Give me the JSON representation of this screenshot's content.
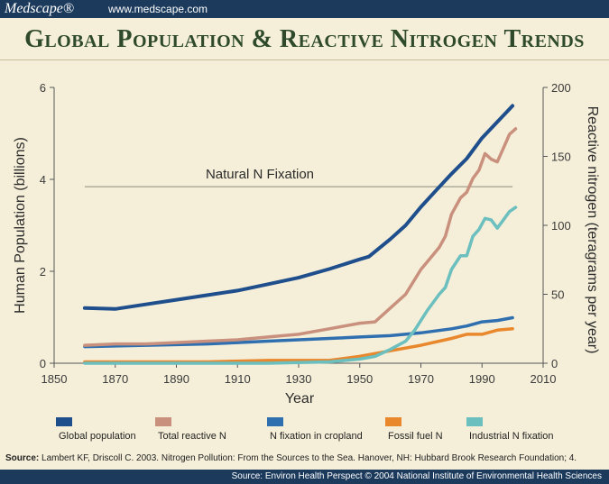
{
  "header": {
    "brand": "Medscape®",
    "site": "www.medscape.com"
  },
  "source_label": "Source:",
  "source_text": "Lambert KF, Driscoll C. 2003. Nitrogen Pollution: From the Sources to the Sea. Hanover, NH: Hubbard Brook Research Foundation; 4.",
  "footer_text": "Source: Environ Health Perspect © 2004 National Institute of Environmental Health Sciences",
  "chart_data": {
    "type": "line",
    "title": "Global Population & Reactive Nitrogen Trends",
    "xlabel": "Year",
    "ylabel_left": "Human Population (billions)",
    "ylabel_right": "Reactive nitrogen (teragrams per year)",
    "xlim": [
      1850,
      2010
    ],
    "ylim_left": [
      0,
      6
    ],
    "ylim_right": [
      0,
      200
    ],
    "x_ticks": [
      1850,
      1870,
      1890,
      1910,
      1930,
      1950,
      1970,
      1990,
      2010
    ],
    "y_left_ticks": [
      0,
      2,
      4,
      6
    ],
    "y_right_ticks": [
      0,
      50,
      100,
      150,
      200
    ],
    "grid": false,
    "reference_line": {
      "label": "Natural N Fixation",
      "value": 128,
      "axis": "right",
      "x_start": 1860,
      "x_end": 2000
    },
    "colors": {
      "Global population": "#1f4e8c",
      "Total reactive N": "#c9917d",
      "N fixation in cropland": "#2f6fb0",
      "Fossil fuel N": "#e8872b",
      "Industrial N fixation": "#6bbfbf"
    },
    "series": [
      {
        "name": "Global population",
        "axis": "left",
        "x": [
          1860,
          1870,
          1880,
          1890,
          1900,
          1910,
          1920,
          1930,
          1940,
          1950,
          1953,
          1960,
          1965,
          1970,
          1975,
          1980,
          1985,
          1990,
          1995,
          2000
        ],
        "y": [
          1.2,
          1.18,
          1.28,
          1.38,
          1.48,
          1.58,
          1.72,
          1.86,
          2.05,
          2.26,
          2.32,
          2.7,
          3.0,
          3.4,
          3.76,
          4.12,
          4.45,
          4.9,
          5.25,
          5.6
        ]
      },
      {
        "name": "Total reactive N",
        "axis": "right",
        "x": [
          1860,
          1870,
          1880,
          1890,
          1900,
          1910,
          1920,
          1930,
          1940,
          1950,
          1955,
          1960,
          1965,
          1970,
          1973,
          1976,
          1978,
          1980,
          1983,
          1985,
          1987,
          1989,
          1991,
          1993,
          1995,
          1997,
          1999,
          2001
        ],
        "y": [
          13,
          14,
          14,
          15,
          16,
          17,
          19,
          21,
          25,
          29,
          30,
          40,
          50,
          68,
          76,
          84,
          92,
          108,
          120,
          124,
          134,
          140,
          152,
          148,
          146,
          156,
          166,
          170
        ]
      },
      {
        "name": "N fixation in cropland",
        "axis": "right",
        "x": [
          1860,
          1880,
          1900,
          1910,
          1920,
          1930,
          1940,
          1950,
          1960,
          1970,
          1980,
          1985,
          1990,
          1995,
          2000
        ],
        "y": [
          12,
          13,
          14,
          15,
          16,
          17,
          18,
          19,
          20,
          22,
          25,
          27,
          30,
          31,
          33
        ]
      },
      {
        "name": "Fossil fuel N",
        "axis": "right",
        "x": [
          1860,
          1880,
          1900,
          1920,
          1940,
          1950,
          1960,
          1970,
          1980,
          1985,
          1990,
          1995,
          2000
        ],
        "y": [
          1,
          1,
          1,
          2,
          2,
          5,
          9,
          13,
          18,
          21,
          21,
          24,
          25
        ]
      },
      {
        "name": "Industrial N fixation",
        "axis": "right",
        "x": [
          1860,
          1900,
          1920,
          1940,
          1950,
          1955,
          1960,
          1965,
          1968,
          1972,
          1976,
          1978,
          1980,
          1983,
          1985,
          1987,
          1989,
          1991,
          1993,
          1995,
          1997,
          1999,
          2001
        ],
        "y": [
          0,
          0,
          0,
          1,
          3,
          5,
          10,
          16,
          24,
          38,
          50,
          55,
          68,
          78,
          78,
          92,
          97,
          105,
          104,
          98,
          104,
          110,
          113
        ]
      }
    ]
  }
}
